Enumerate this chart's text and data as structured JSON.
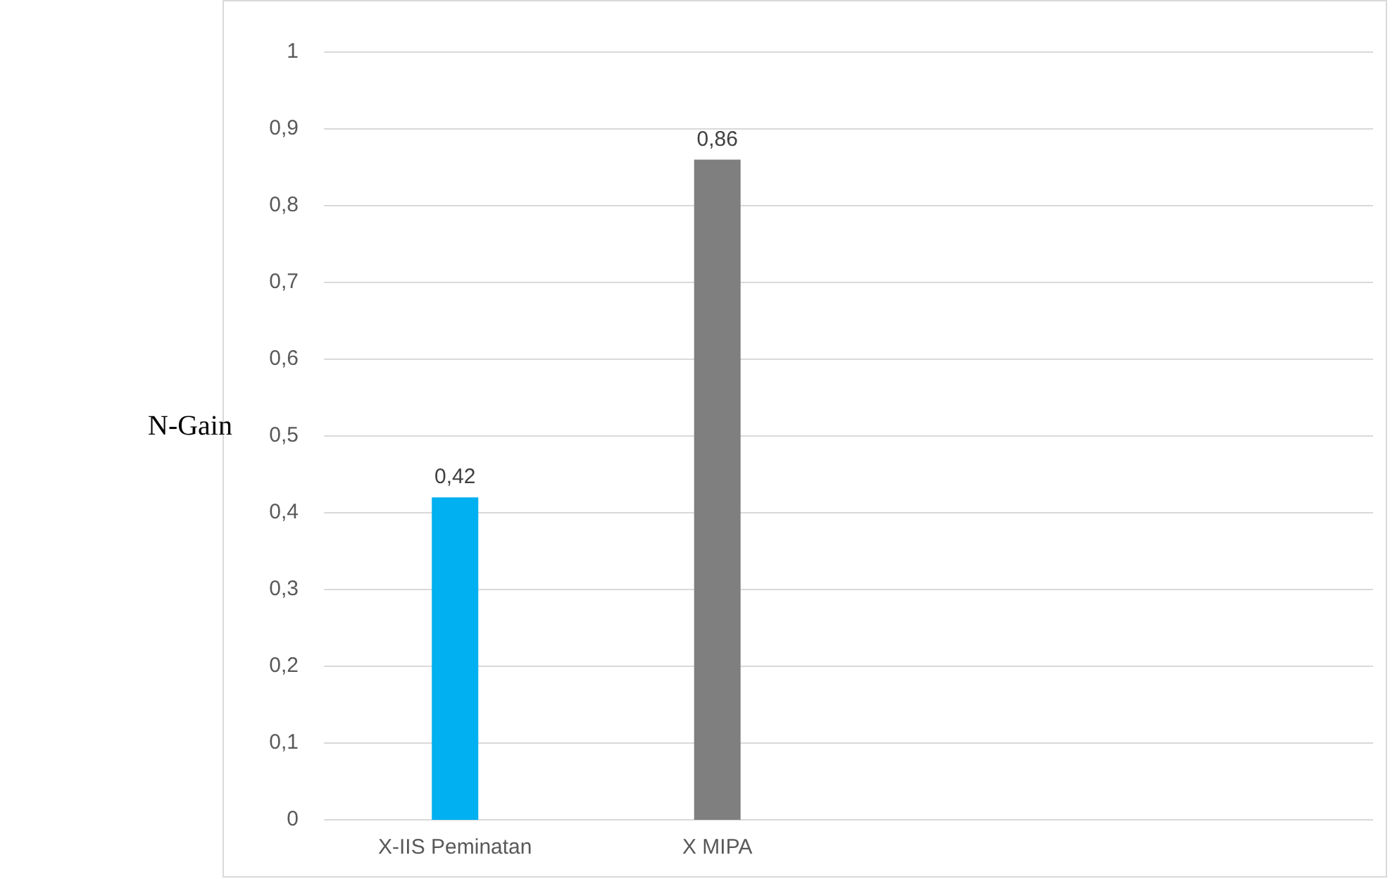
{
  "chart_data": {
    "type": "bar",
    "ylabel": "N-Gain",
    "categories": [
      "X-IIS Peminatan",
      "X MIPA",
      null,
      null
    ],
    "values": [
      0.42,
      0.86,
      null,
      null
    ],
    "colors": [
      "#00b0f0",
      "#7f7f7f",
      null,
      null
    ],
    "value_labels": [
      "0,42",
      "0,86",
      null,
      null
    ],
    "ylim": [
      0,
      1
    ],
    "yticks": [
      0,
      {
        "value": 0.1,
        "label": "0,1"
      },
      {
        "value": 0.2,
        "label": "0,2"
      },
      {
        "value": 0.3,
        "label": "0,3"
      },
      {
        "value": 0.4,
        "label": "0,4"
      },
      {
        "value": 0.5,
        "label": "0,5"
      },
      {
        "value": 0.6,
        "label": "0,6"
      },
      {
        "value": 0.7,
        "label": "0,7"
      },
      {
        "value": 0.8,
        "label": "0,8"
      },
      {
        "value": 0.9,
        "label": "0,9"
      },
      1
    ],
    "grid": "y"
  }
}
